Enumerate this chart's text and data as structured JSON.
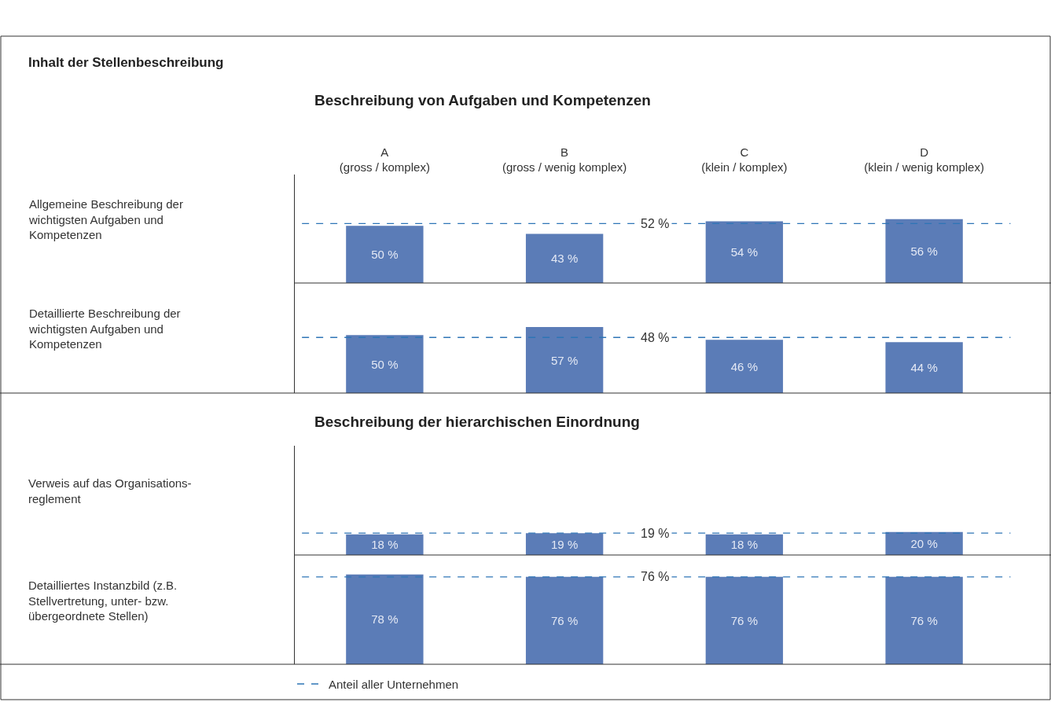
{
  "chart_data": [
    {
      "type": "bar",
      "title": "Inhalt der Stellenbeschreibung",
      "subtitle": "Beschreibung von Aufgaben und Kompetenzen",
      "ylabel": "Allgemeine Beschreibung der\nwichtigsten Aufgaben und\nKompetenzen",
      "categories": [
        "A\n(gross / komplex)",
        "B\n(gross / wenig komplex)",
        "C\n(klein / komplex)",
        "D\n(klein / wenig komplex)"
      ],
      "values": [
        50,
        43,
        54,
        56
      ],
      "value_labels": [
        "50 %",
        "43 %",
        "54 %",
        "56 %"
      ],
      "color": "#5b7cb7",
      "ylim": [
        0,
        95
      ],
      "tick_labels": "x",
      "ref_lines": [
        {
          "axis": "y",
          "value": 52,
          "label": "52 %",
          "color": "#2e75b6",
          "line_style": "dashed"
        }
      ]
    },
    {
      "type": "bar",
      "ylabel": "Detaillierte Beschreibung der\nwichtigsten Aufgaben und\nKompetenzen",
      "categories": [
        "A\n(gross / komplex)",
        "B\n(gross / wenig komplex)",
        "C\n(klein / komplex)",
        "D\n(klein / wenig komplex)"
      ],
      "values": [
        50,
        57,
        46,
        44
      ],
      "value_labels": [
        "50 %",
        "57 %",
        "46 %",
        "44 %"
      ],
      "color": "#5b7cb7",
      "ylim": [
        0,
        95
      ],
      "tick_labels": false,
      "ref_lines": [
        {
          "axis": "y",
          "value": 48,
          "label": "48 %",
          "color": "#2e75b6",
          "line_style": "dashed"
        }
      ]
    },
    {
      "type": "bar",
      "title": "Beschreibung der hierarchischen Einordnung",
      "ylabel": "Verweis auf das Organisations-\nreglement",
      "categories": [
        "A\n(gross / komplex)",
        "B\n(gross / wenig komplex)",
        "C\n(klein / komplex)",
        "D\n(klein / wenig komplex)"
      ],
      "values": [
        18,
        19,
        18,
        20
      ],
      "value_labels": [
        "18 %",
        "19 %",
        "18 %",
        "20 %"
      ],
      "color": "#5b7cb7",
      "ylim": [
        0,
        95
      ],
      "tick_labels": false,
      "ref_lines": [
        {
          "axis": "y",
          "value": 19,
          "label": "19 %",
          "color": "#2e75b6",
          "line_style": "dashed"
        }
      ]
    },
    {
      "type": "bar",
      "ylabel": "Detailliertes Instanzbild (z.B.\nStellvertretung, unter- bzw.\nübergeordnete Stellen)",
      "categories": [
        "A\n(gross / komplex)",
        "B\n(gross / wenig komplex)",
        "C\n(klein / komplex)",
        "D\n(klein / wenig komplex)"
      ],
      "values": [
        78,
        76,
        76,
        76
      ],
      "value_labels": [
        "78 %",
        "76 %",
        "76 %",
        "76 %"
      ],
      "color": "#5b7cb7",
      "ylim": [
        0,
        95
      ],
      "tick_labels": false,
      "ref_lines": [
        {
          "axis": "y",
          "value": 76,
          "label": "76 %",
          "color": "#2e75b6",
          "line_style": "dashed"
        }
      ],
      "annotations": [
        "Anteil aller Unternehmen"
      ]
    }
  ]
}
